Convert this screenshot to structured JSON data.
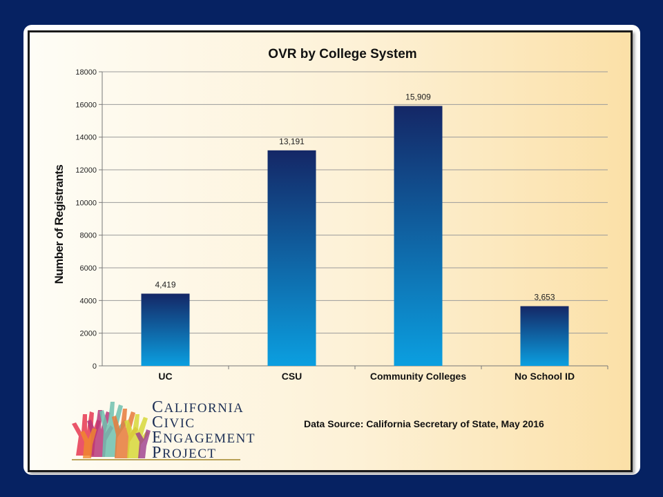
{
  "chart_data": {
    "type": "bar",
    "title": "OVR by College System",
    "ylabel": "Number of Registrants",
    "categories": [
      "UC",
      "CSU",
      "Community Colleges",
      "No School ID"
    ],
    "values": [
      4419,
      13191,
      15909,
      3653
    ],
    "data_labels": [
      "4,419",
      "13,191",
      "15,909",
      "3,653"
    ],
    "yticks": [
      "0",
      "2000",
      "4000",
      "6000",
      "8000",
      "10000",
      "12000",
      "14000",
      "16000",
      "18000"
    ],
    "ylim": [
      0,
      18000
    ],
    "grid": true,
    "bar_gradient": [
      "#142766",
      "#0b9fe0"
    ]
  },
  "source": "Data Source: California Secretary of State, May 2016",
  "logo": {
    "lines": [
      {
        "cap": "C",
        "rest": "ALIFORNIA"
      },
      {
        "cap": "C",
        "rest": "IVIC"
      },
      {
        "cap": "E",
        "rest": "NGAGEMENT"
      },
      {
        "cap": "P",
        "rest": "ROJECT"
      }
    ]
  },
  "colors": {
    "background": "#062262",
    "text": "#111111",
    "logo_text": "#1d2f55"
  }
}
